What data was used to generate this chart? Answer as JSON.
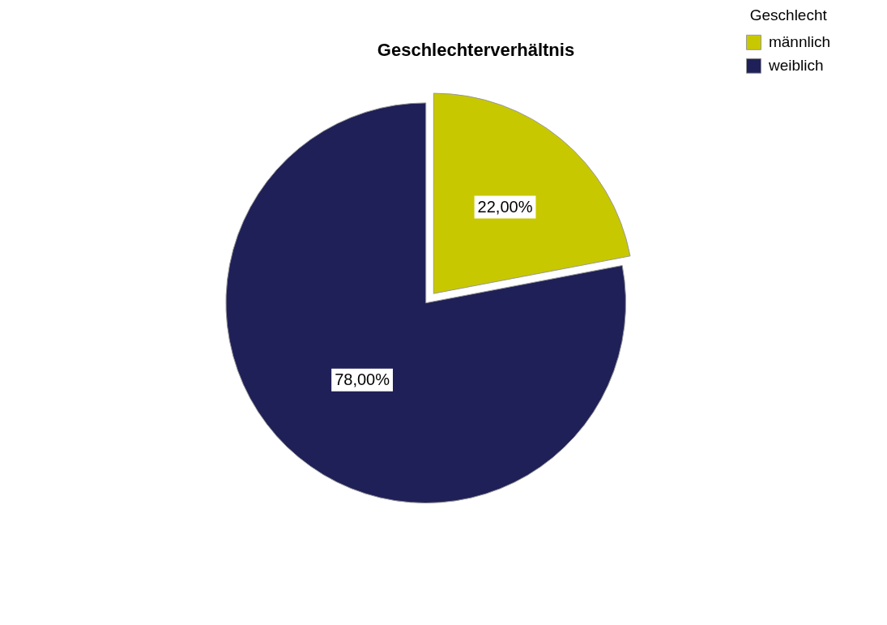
{
  "chart_data": {
    "type": "pie",
    "title": "Geschlechterverhältnis",
    "legend_title": "Geschlecht",
    "legend": "top right",
    "categories": [
      "männlich",
      "weiblich"
    ],
    "values": [
      22,
      78
    ],
    "colors": [
      "#c8c800",
      "#1f2057"
    ],
    "value_labels": [
      "22,00%",
      "78,00%"
    ]
  }
}
